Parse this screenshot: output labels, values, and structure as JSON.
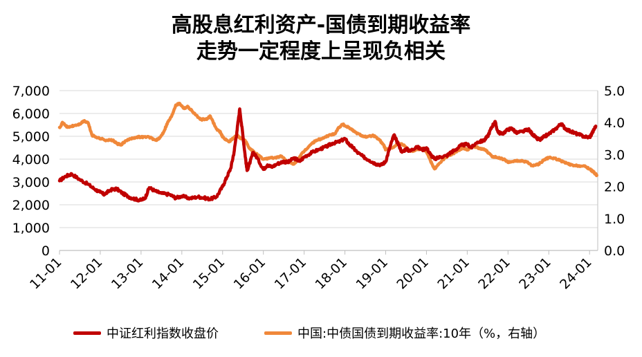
{
  "chart_data": {
    "type": "line",
    "title_line1": "高股息红利资产-国债到期收益率",
    "title_line2": "走势一定程度上呈现负相关",
    "x_tick_labels": [
      "11-01",
      "12-01",
      "13-01",
      "14-01",
      "15-01",
      "16-01",
      "17-01",
      "18-01",
      "19-01",
      "20-01",
      "21-01",
      "22-01",
      "23-01",
      "24-01"
    ],
    "y_left": {
      "ticks": [
        "0",
        "1,000",
        "2,000",
        "3,000",
        "4,000",
        "5,000",
        "6,000",
        "7,000"
      ],
      "ylim": [
        0,
        7000
      ]
    },
    "y_right": {
      "ticks": [
        "0.0",
        "1.0",
        "2.0",
        "3.0",
        "4.0",
        "5.0"
      ],
      "ylim": [
        0,
        5
      ]
    },
    "x_range": [
      2011.0,
      2024.2
    ],
    "grid": "horizontal",
    "legend_position": "bottom",
    "colors": {
      "dividend": "#c00000",
      "bond": "#f0883a"
    },
    "series": [
      {
        "name": "中证红利指数收盘价",
        "axis": "left",
        "points": [
          [
            2011.0,
            3050
          ],
          [
            2011.15,
            3250
          ],
          [
            2011.3,
            3350
          ],
          [
            2011.5,
            3100
          ],
          [
            2011.7,
            2900
          ],
          [
            2011.85,
            2700
          ],
          [
            2012.0,
            2550
          ],
          [
            2012.1,
            2450
          ],
          [
            2012.25,
            2650
          ],
          [
            2012.4,
            2700
          ],
          [
            2012.55,
            2500
          ],
          [
            2012.7,
            2350
          ],
          [
            2012.85,
            2250
          ],
          [
            2013.0,
            2200
          ],
          [
            2013.1,
            2300
          ],
          [
            2013.2,
            2750
          ],
          [
            2013.35,
            2600
          ],
          [
            2013.5,
            2500
          ],
          [
            2013.7,
            2450
          ],
          [
            2013.85,
            2300
          ],
          [
            2014.0,
            2380
          ],
          [
            2014.2,
            2280
          ],
          [
            2014.4,
            2350
          ],
          [
            2014.55,
            2300
          ],
          [
            2014.7,
            2250
          ],
          [
            2014.85,
            2350
          ],
          [
            2015.0,
            2800
          ],
          [
            2015.1,
            3200
          ],
          [
            2015.2,
            3600
          ],
          [
            2015.28,
            4300
          ],
          [
            2015.35,
            5200
          ],
          [
            2015.42,
            6200
          ],
          [
            2015.5,
            5000
          ],
          [
            2015.55,
            4200
          ],
          [
            2015.6,
            3500
          ],
          [
            2015.68,
            3900
          ],
          [
            2015.75,
            4300
          ],
          [
            2015.85,
            4050
          ],
          [
            2016.0,
            3550
          ],
          [
            2016.1,
            3750
          ],
          [
            2016.2,
            3650
          ],
          [
            2016.35,
            3800
          ],
          [
            2016.5,
            3900
          ],
          [
            2016.6,
            3850
          ],
          [
            2016.75,
            4050
          ],
          [
            2016.9,
            3900
          ],
          [
            2017.0,
            4100
          ],
          [
            2017.2,
            4300
          ],
          [
            2017.4,
            4450
          ],
          [
            2017.55,
            4550
          ],
          [
            2017.7,
            4700
          ],
          [
            2017.85,
            4750
          ],
          [
            2018.0,
            4900
          ],
          [
            2018.1,
            4650
          ],
          [
            2018.2,
            4500
          ],
          [
            2018.3,
            4300
          ],
          [
            2018.45,
            4100
          ],
          [
            2018.6,
            3950
          ],
          [
            2018.75,
            3800
          ],
          [
            2018.9,
            3750
          ],
          [
            2019.0,
            3900
          ],
          [
            2019.1,
            4500
          ],
          [
            2019.2,
            5050
          ],
          [
            2019.3,
            4700
          ],
          [
            2019.4,
            4300
          ],
          [
            2019.5,
            4450
          ],
          [
            2019.6,
            4350
          ],
          [
            2019.75,
            4550
          ],
          [
            2019.9,
            4400
          ],
          [
            2020.0,
            4500
          ],
          [
            2020.1,
            4200
          ],
          [
            2020.2,
            4000
          ],
          [
            2020.35,
            4100
          ],
          [
            2020.5,
            4150
          ],
          [
            2020.6,
            4300
          ],
          [
            2020.7,
            4400
          ],
          [
            2020.85,
            4600
          ],
          [
            2021.0,
            4650
          ],
          [
            2021.1,
            4500
          ],
          [
            2021.25,
            4750
          ],
          [
            2021.4,
            4800
          ],
          [
            2021.5,
            5000
          ],
          [
            2021.6,
            5400
          ],
          [
            2021.68,
            5650
          ],
          [
            2021.75,
            5200
          ],
          [
            2021.85,
            5100
          ],
          [
            2022.0,
            5300
          ],
          [
            2022.1,
            5350
          ],
          [
            2022.2,
            5150
          ],
          [
            2022.35,
            5200
          ],
          [
            2022.5,
            5300
          ],
          [
            2022.6,
            5100
          ],
          [
            2022.7,
            4900
          ],
          [
            2022.8,
            4850
          ],
          [
            2022.9,
            5000
          ],
          [
            2023.0,
            5100
          ],
          [
            2023.15,
            5300
          ],
          [
            2023.3,
            5550
          ],
          [
            2023.4,
            5350
          ],
          [
            2023.55,
            5200
          ],
          [
            2023.7,
            5100
          ],
          [
            2023.85,
            5000
          ],
          [
            2024.0,
            4950
          ],
          [
            2024.08,
            5200
          ],
          [
            2024.15,
            5450
          ]
        ]
      },
      {
        "name": "中国:中债国债到期收益率:10年（%，右轴）",
        "axis": "right",
        "points": [
          [
            2011.0,
            3.85
          ],
          [
            2011.08,
            4.0
          ],
          [
            2011.2,
            3.85
          ],
          [
            2011.35,
            3.9
          ],
          [
            2011.5,
            3.95
          ],
          [
            2011.6,
            4.05
          ],
          [
            2011.7,
            4.0
          ],
          [
            2011.8,
            3.6
          ],
          [
            2011.9,
            3.55
          ],
          [
            2012.0,
            3.5
          ],
          [
            2012.15,
            3.45
          ],
          [
            2012.3,
            3.45
          ],
          [
            2012.4,
            3.35
          ],
          [
            2012.5,
            3.3
          ],
          [
            2012.6,
            3.4
          ],
          [
            2012.75,
            3.5
          ],
          [
            2012.9,
            3.55
          ],
          [
            2013.0,
            3.55
          ],
          [
            2013.2,
            3.55
          ],
          [
            2013.35,
            3.45
          ],
          [
            2013.45,
            3.5
          ],
          [
            2013.55,
            3.7
          ],
          [
            2013.65,
            4.0
          ],
          [
            2013.75,
            4.2
          ],
          [
            2013.85,
            4.55
          ],
          [
            2013.95,
            4.6
          ],
          [
            2014.05,
            4.45
          ],
          [
            2014.15,
            4.5
          ],
          [
            2014.3,
            4.3
          ],
          [
            2014.45,
            4.1
          ],
          [
            2014.6,
            4.1
          ],
          [
            2014.7,
            4.2
          ],
          [
            2014.85,
            3.8
          ],
          [
            2014.95,
            3.7
          ],
          [
            2015.0,
            3.55
          ],
          [
            2015.15,
            3.4
          ],
          [
            2015.25,
            3.5
          ],
          [
            2015.35,
            3.6
          ],
          [
            2015.45,
            3.5
          ],
          [
            2015.55,
            3.45
          ],
          [
            2015.65,
            3.2
          ],
          [
            2015.75,
            3.1
          ],
          [
            2015.85,
            3.0
          ],
          [
            2016.0,
            2.85
          ],
          [
            2016.15,
            2.9
          ],
          [
            2016.3,
            2.9
          ],
          [
            2016.45,
            2.95
          ],
          [
            2016.6,
            2.75
          ],
          [
            2016.75,
            2.7
          ],
          [
            2016.9,
            2.95
          ],
          [
            2017.0,
            3.1
          ],
          [
            2017.15,
            3.3
          ],
          [
            2017.3,
            3.45
          ],
          [
            2017.45,
            3.5
          ],
          [
            2017.6,
            3.6
          ],
          [
            2017.75,
            3.65
          ],
          [
            2017.85,
            3.85
          ],
          [
            2017.95,
            3.95
          ],
          [
            2018.0,
            3.9
          ],
          [
            2018.1,
            3.85
          ],
          [
            2018.25,
            3.7
          ],
          [
            2018.4,
            3.6
          ],
          [
            2018.55,
            3.55
          ],
          [
            2018.7,
            3.6
          ],
          [
            2018.85,
            3.45
          ],
          [
            2018.95,
            3.3
          ],
          [
            2019.0,
            3.15
          ],
          [
            2019.15,
            3.2
          ],
          [
            2019.3,
            3.35
          ],
          [
            2019.45,
            3.3
          ],
          [
            2019.6,
            3.1
          ],
          [
            2019.75,
            3.15
          ],
          [
            2019.9,
            3.2
          ],
          [
            2020.0,
            3.1
          ],
          [
            2020.1,
            2.8
          ],
          [
            2020.2,
            2.55
          ],
          [
            2020.3,
            2.7
          ],
          [
            2020.45,
            2.9
          ],
          [
            2020.6,
            3.0
          ],
          [
            2020.75,
            3.1
          ],
          [
            2020.9,
            3.2
          ],
          [
            2021.0,
            3.15
          ],
          [
            2021.15,
            3.25
          ],
          [
            2021.3,
            3.2
          ],
          [
            2021.45,
            3.15
          ],
          [
            2021.6,
            2.95
          ],
          [
            2021.75,
            2.9
          ],
          [
            2021.9,
            2.85
          ],
          [
            2022.0,
            2.75
          ],
          [
            2022.15,
            2.8
          ],
          [
            2022.3,
            2.8
          ],
          [
            2022.45,
            2.78
          ],
          [
            2022.6,
            2.65
          ],
          [
            2022.75,
            2.7
          ],
          [
            2022.9,
            2.85
          ],
          [
            2023.0,
            2.9
          ],
          [
            2023.15,
            2.88
          ],
          [
            2023.3,
            2.8
          ],
          [
            2023.45,
            2.72
          ],
          [
            2023.6,
            2.65
          ],
          [
            2023.75,
            2.65
          ],
          [
            2023.9,
            2.62
          ],
          [
            2024.0,
            2.55
          ],
          [
            2024.1,
            2.45
          ],
          [
            2024.18,
            2.35
          ]
        ]
      }
    ]
  }
}
